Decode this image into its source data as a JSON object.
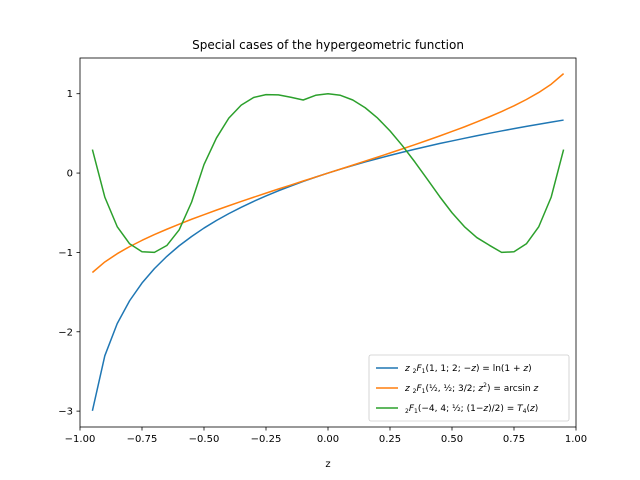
{
  "chart_data": {
    "type": "line",
    "title": "Special cases of the hypergeometric function",
    "xlabel": "z",
    "ylabel": "",
    "xlim": [
      -1.0,
      1.0
    ],
    "ylim": [
      -3.2,
      1.45
    ],
    "xticks": [
      -1.0,
      -0.75,
      -0.5,
      -0.25,
      0.0,
      0.25,
      0.5,
      0.75,
      1.0
    ],
    "xtick_labels": [
      "−1.00",
      "−0.75",
      "−0.50",
      "−0.25",
      "0.00",
      "0.25",
      "0.50",
      "0.75",
      "1.00"
    ],
    "yticks": [
      -3,
      -2,
      -1,
      0,
      1
    ],
    "ytick_labels": [
      "−3",
      "−2",
      "−1",
      "0",
      "1"
    ],
    "grid": false,
    "legend_position": "lower-right",
    "x": [
      -0.95,
      -0.9,
      -0.85,
      -0.8,
      -0.75,
      -0.7,
      -0.65,
      -0.6,
      -0.55,
      -0.5,
      -0.45,
      -0.4,
      -0.35,
      -0.3,
      -0.25,
      -0.2,
      -0.15,
      -0.1,
      -0.05,
      0.0,
      0.05,
      0.1,
      0.15,
      0.2,
      0.25,
      0.3,
      0.35,
      0.4,
      0.45,
      0.5,
      0.55,
      0.6,
      0.65,
      0.7,
      0.75,
      0.8,
      0.85,
      0.9,
      0.95
    ],
    "series": [
      {
        "name": "z ₂F₁(1, 1; 2; −z) = ln(1 + z)",
        "color": "#1f77b4",
        "values": [
          -2.996,
          -2.303,
          -1.897,
          -1.609,
          -1.386,
          -1.204,
          -1.05,
          -0.916,
          -0.799,
          -0.693,
          -0.598,
          -0.511,
          -0.431,
          -0.357,
          -0.288,
          -0.223,
          -0.163,
          -0.105,
          -0.051,
          0.0,
          0.049,
          0.095,
          0.14,
          0.182,
          0.223,
          0.262,
          0.3,
          0.336,
          0.372,
          0.405,
          0.438,
          0.47,
          0.501,
          0.531,
          0.56,
          0.588,
          0.615,
          0.642,
          0.668
        ]
      },
      {
        "name": "z ₂F₁(½, ½; 3/2; z²) = arcsin z",
        "color": "#ff7f0e",
        "values": [
          -1.253,
          -1.12,
          -1.016,
          -0.927,
          -0.848,
          -0.775,
          -0.708,
          -0.644,
          -0.582,
          -0.524,
          -0.467,
          -0.412,
          -0.358,
          -0.305,
          -0.253,
          -0.201,
          -0.151,
          -0.1,
          -0.05,
          0.0,
          0.05,
          0.1,
          0.151,
          0.201,
          0.253,
          0.305,
          0.358,
          0.412,
          0.467,
          0.524,
          0.582,
          0.644,
          0.708,
          0.775,
          0.848,
          0.927,
          1.016,
          1.12,
          1.253
        ]
      },
      {
        "name": "₂F₁(−4, 4; ½; (1−z)/2) = T₄(z)",
        "color": "#2ca02c",
        "values": [
          0.2968,
          -0.3032,
          -0.6752,
          -0.8912,
          -0.9922,
          -0.9992,
          -0.9132,
          -0.7152,
          -0.3662,
          0.1072,
          0.4408,
          0.6928,
          0.8561,
          0.9521,
          0.9888,
          0.9853,
          0.9552,
          0.9208,
          0.98,
          1.0,
          0.98,
          0.9208,
          0.8232,
          0.6928,
          0.5312,
          0.3448,
          0.1408,
          -0.0752,
          -0.2952,
          -0.5,
          -0.6752,
          -0.8128,
          -0.9087,
          -0.9992,
          -0.9922,
          -0.8912,
          -0.6752,
          -0.3032,
          0.2968
        ]
      }
    ]
  }
}
